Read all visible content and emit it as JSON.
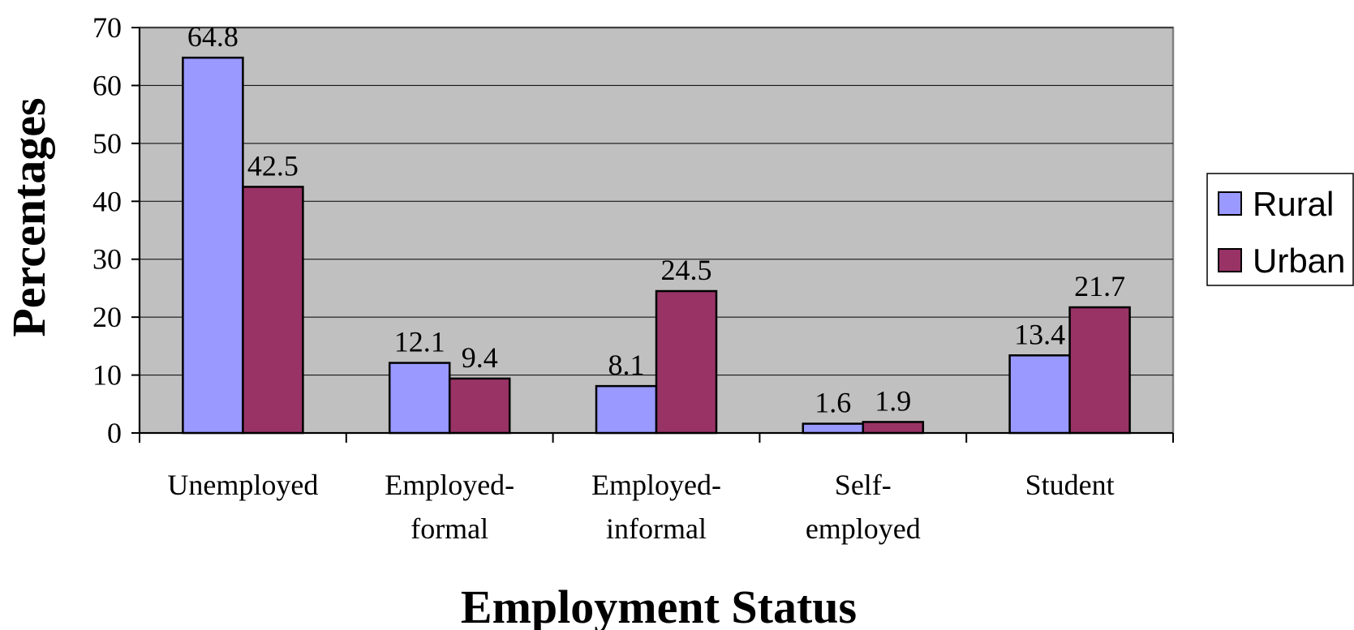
{
  "chart_data": {
    "type": "bar",
    "xlabel": "Employment Status",
    "ylabel": "Percentages",
    "categories": [
      [
        "Unemployed"
      ],
      [
        "Employed-",
        "formal"
      ],
      [
        "Employed-",
        "informal"
      ],
      [
        "Self-",
        "employed"
      ],
      [
        "Student"
      ]
    ],
    "series": [
      {
        "name": "Rural",
        "color": "#9999ff",
        "values": [
          64.8,
          12.1,
          8.1,
          1.6,
          13.4
        ],
        "labels": [
          "64.8",
          "12.1",
          "8.1",
          "1.6",
          "13.4"
        ]
      },
      {
        "name": "Urban",
        "color": "#993366",
        "values": [
          42.5,
          9.4,
          24.5,
          1.9,
          21.7
        ],
        "labels": [
          "42.5",
          "9.4",
          "24.5",
          "1.9",
          "21.7"
        ]
      }
    ],
    "ylim": [
      0,
      70
    ],
    "yticks": [
      0,
      10,
      20,
      30,
      40,
      50,
      60,
      70
    ],
    "grid": true,
    "plot_background": "#c0c0c0",
    "legend_position": "right"
  }
}
